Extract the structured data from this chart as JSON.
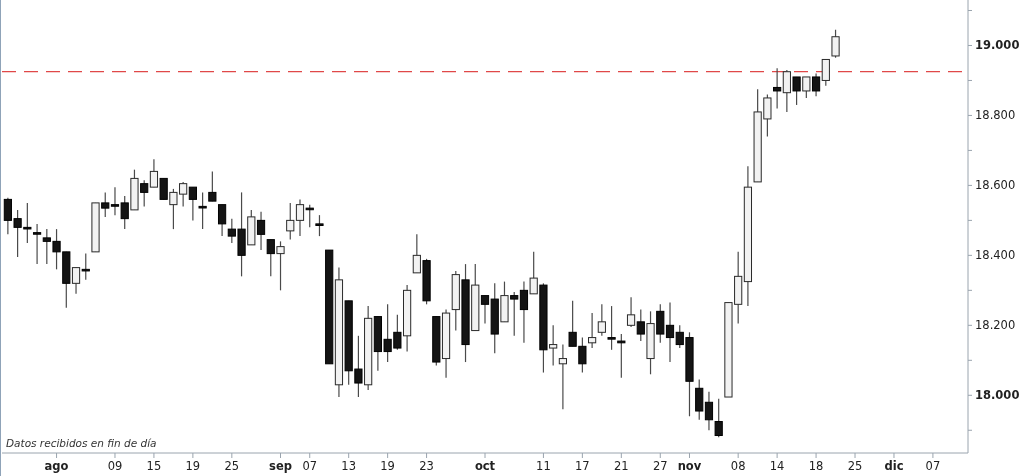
{
  "chart_data": {
    "type": "candlestick",
    "categories": [
      null,
      null,
      null,
      null,
      null,
      "ago",
      null,
      null,
      null,
      null,
      null,
      "09",
      null,
      null,
      null,
      "15",
      null,
      null,
      null,
      "19",
      null,
      null,
      null,
      "25",
      null,
      null,
      null,
      null,
      "sep",
      null,
      null,
      "07",
      null,
      null,
      null,
      "13",
      null,
      null,
      null,
      "19",
      null,
      null,
      null,
      "23",
      null,
      null,
      null,
      null,
      null,
      "oct",
      null,
      null,
      null,
      null,
      null,
      "11",
      null,
      null,
      null,
      "17",
      null,
      null,
      null,
      "21",
      null,
      null,
      null,
      "27",
      null,
      null,
      "nov",
      null,
      null,
      null,
      null,
      "08",
      null,
      null,
      null,
      "14",
      null,
      null,
      null,
      "18",
      null,
      null,
      null,
      "25",
      null,
      null,
      null,
      "dic",
      null,
      null,
      null,
      "07",
      null,
      null,
      null
    ],
    "ohlc": [
      [
        18560,
        18565,
        18460,
        18500
      ],
      [
        18505,
        18530,
        18395,
        18480
      ],
      [
        18480,
        18550,
        18435,
        18480
      ],
      [
        18465,
        18490,
        18375,
        18465
      ],
      [
        18450,
        18475,
        18375,
        18440
      ],
      [
        18440,
        18475,
        18360,
        18410
      ],
      [
        18410,
        18410,
        18250,
        18320
      ],
      [
        18320,
        18365,
        18290,
        18365
      ],
      [
        18360,
        18405,
        18330,
        18360
      ],
      [
        18410,
        18550,
        18410,
        18550
      ],
      [
        18550,
        18580,
        18510,
        18535
      ],
      [
        18545,
        18595,
        18515,
        18545
      ],
      [
        18550,
        18570,
        18475,
        18505
      ],
      [
        18530,
        18645,
        18530,
        18620
      ],
      [
        18605,
        18615,
        18540,
        18580
      ],
      [
        18595,
        18675,
        18595,
        18640
      ],
      [
        18620,
        18620,
        18560,
        18560
      ],
      [
        18545,
        18590,
        18475,
        18580
      ],
      [
        18575,
        18610,
        18540,
        18605
      ],
      [
        18595,
        18595,
        18500,
        18560
      ],
      [
        18540,
        18580,
        18475,
        18540
      ],
      [
        18580,
        18640,
        18555,
        18555
      ],
      [
        18545,
        18545,
        18455,
        18490
      ],
      [
        18475,
        18505,
        18435,
        18455
      ],
      [
        18475,
        18580,
        18340,
        18400
      ],
      [
        18430,
        18530,
        18430,
        18510
      ],
      [
        18500,
        18525,
        18415,
        18460
      ],
      [
        18445,
        18445,
        18340,
        18405
      ],
      [
        18405,
        18440,
        18300,
        18425
      ],
      [
        18470,
        18550,
        18445,
        18500
      ],
      [
        18500,
        18560,
        18455,
        18545
      ],
      [
        18535,
        18545,
        18480,
        18535
      ],
      [
        18490,
        18515,
        18455,
        18490
      ],
      [
        18415,
        18415,
        18090,
        18090
      ],
      [
        18030,
        18365,
        17995,
        18330
      ],
      [
        18270,
        18270,
        18030,
        18070
      ],
      [
        18075,
        18170,
        17995,
        18035
      ],
      [
        18030,
        18255,
        18015,
        18220
      ],
      [
        18225,
        18225,
        18070,
        18125
      ],
      [
        18160,
        18260,
        18095,
        18125
      ],
      [
        18180,
        18230,
        18130,
        18135
      ],
      [
        18170,
        18315,
        18125,
        18300
      ],
      [
        18350,
        18460,
        18350,
        18400
      ],
      [
        18385,
        18390,
        18260,
        18270
      ],
      [
        18225,
        18225,
        18085,
        18095
      ],
      [
        18105,
        18245,
        18050,
        18235
      ],
      [
        18245,
        18355,
        18185,
        18345
      ],
      [
        18330,
        18375,
        18095,
        18145
      ],
      [
        18185,
        18375,
        18185,
        18315
      ],
      [
        18285,
        18285,
        18205,
        18260
      ],
      [
        18275,
        18320,
        18120,
        18175
      ],
      [
        18210,
        18325,
        18210,
        18285
      ],
      [
        18285,
        18295,
        18170,
        18275
      ],
      [
        18300,
        18325,
        18150,
        18245
      ],
      [
        18290,
        18410,
        18290,
        18335
      ],
      [
        18315,
        18320,
        18065,
        18130
      ],
      [
        18135,
        18200,
        18085,
        18145
      ],
      [
        18090,
        18145,
        17960,
        18105
      ],
      [
        18180,
        18270,
        18140,
        18140
      ],
      [
        18140,
        18165,
        18065,
        18090
      ],
      [
        18150,
        18235,
        18135,
        18165
      ],
      [
        18180,
        18260,
        18170,
        18210
      ],
      [
        18165,
        18255,
        18130,
        18165
      ],
      [
        18155,
        18175,
        18050,
        18150
      ],
      [
        18200,
        18280,
        18195,
        18230
      ],
      [
        18210,
        18245,
        18155,
        18175
      ],
      [
        18105,
        18240,
        18060,
        18205
      ],
      [
        18240,
        18260,
        18150,
        18175
      ],
      [
        18200,
        18265,
        18095,
        18165
      ],
      [
        18180,
        18200,
        18135,
        18145
      ],
      [
        18165,
        18180,
        17940,
        18040
      ],
      [
        18020,
        18045,
        17930,
        17955
      ],
      [
        17980,
        18010,
        17900,
        17930
      ],
      [
        17925,
        17990,
        17880,
        17885
      ],
      [
        17995,
        18265,
        17995,
        18265
      ],
      [
        18260,
        18410,
        18205,
        18340
      ],
      [
        18325,
        18655,
        18255,
        18595
      ],
      [
        18610,
        18875,
        18610,
        18810
      ],
      [
        18790,
        18860,
        18740,
        18850
      ],
      [
        18880,
        18935,
        18820,
        18870
      ],
      [
        18865,
        18930,
        18810,
        18925
      ],
      [
        18910,
        18910,
        18830,
        18870
      ],
      [
        18870,
        18910,
        18850,
        18910
      ],
      [
        18910,
        18920,
        18855,
        18870
      ],
      [
        18900,
        18960,
        18885,
        18960
      ],
      [
        18970,
        19045,
        18965,
        19025
      ],
      null,
      null,
      null,
      null,
      null,
      null,
      null,
      null,
      null,
      null,
      null,
      null,
      null
    ],
    "ylim": [
      17835,
      19130
    ],
    "yticks": [
      {
        "value": 17900,
        "label": null
      },
      {
        "value": 18000,
        "label": "18.000"
      },
      {
        "value": 18100,
        "label": null
      },
      {
        "value": 18200,
        "label": "18.200"
      },
      {
        "value": 18300,
        "label": null
      },
      {
        "value": 18400,
        "label": "18.400"
      },
      {
        "value": 18500,
        "label": null
      },
      {
        "value": 18600,
        "label": "18.600"
      },
      {
        "value": 18700,
        "label": null
      },
      {
        "value": 18800,
        "label": "18.800"
      },
      {
        "value": 18900,
        "label": null
      },
      {
        "value": 19000,
        "label": "19.000"
      },
      {
        "value": 19100,
        "label": null
      }
    ],
    "ref_lines": [
      {
        "axis": "y",
        "value": 18925,
        "color": "#e04848",
        "line_style": "dashed"
      }
    ],
    "annotations": [
      "Datos recibidos en fin de día"
    ]
  }
}
